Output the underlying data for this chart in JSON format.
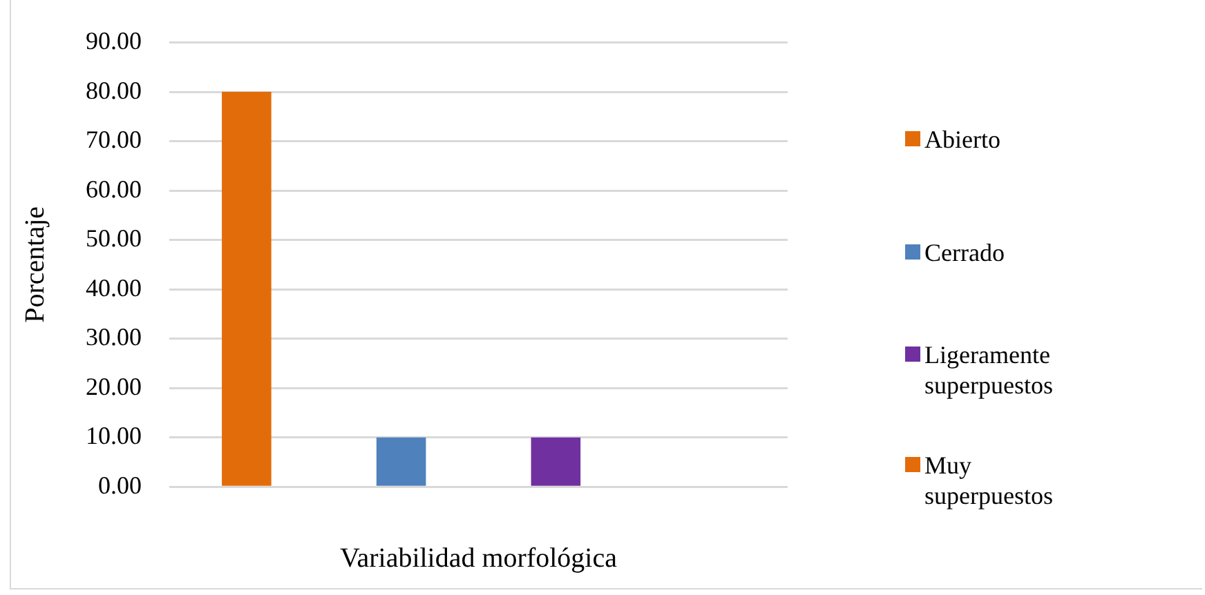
{
  "chart_data": {
    "type": "bar",
    "categories": [
      null
    ],
    "xlabel": "Variabilidad morfológica",
    "ylabel": "Porcentaje",
    "series": [
      {
        "name": "Abierto",
        "color": "#e36c0a",
        "values": [
          80
        ]
      },
      {
        "name": "Cerrado",
        "color": "#4f81bd",
        "values": [
          10
        ]
      },
      {
        "name": "Ligeramente superpuestos",
        "color": "#7030a0",
        "values": [
          10
        ]
      },
      {
        "name": "Muy superpuestos",
        "color": "#e36c0a",
        "values": [
          0
        ]
      }
    ],
    "ylim": [
      0,
      90
    ],
    "yticks": [
      {
        "value": 0,
        "label": "0.00"
      },
      {
        "value": 10,
        "label": "10.00"
      },
      {
        "value": 20,
        "label": "20.00"
      },
      {
        "value": 30,
        "label": "30.00"
      },
      {
        "value": 40,
        "label": "40.00"
      },
      {
        "value": 50,
        "label": "50.00"
      },
      {
        "value": 60,
        "label": "60.00"
      },
      {
        "value": 70,
        "label": "70.00"
      },
      {
        "value": 80,
        "label": "80.00"
      },
      {
        "value": 90,
        "label": "90.00"
      }
    ],
    "grid": "y",
    "legend": "right"
  }
}
